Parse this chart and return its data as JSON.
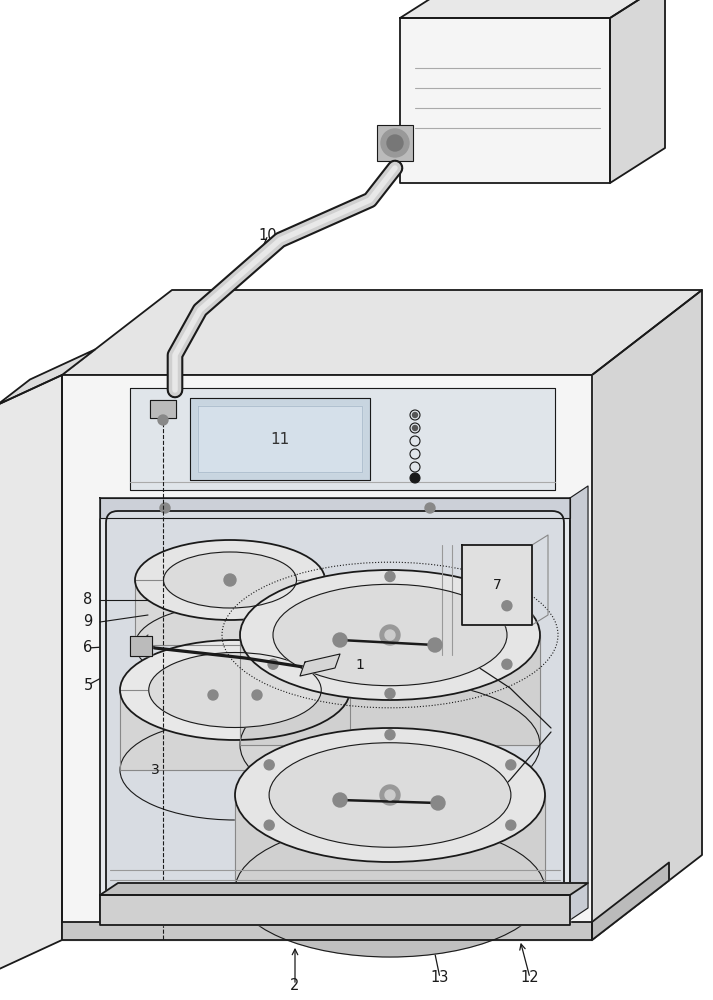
{
  "bg_color": "#ffffff",
  "lc": "#1a1a1a",
  "figsize": [
    7.13,
    10.0
  ],
  "dpi": 100,
  "fill_front": "#f8f8f8",
  "fill_side": "#e0e0e0",
  "fill_top": "#eeeeee",
  "fill_inner": "#f0f0f0",
  "fill_inner_bg": "#e8e8e8",
  "fill_drum": "#e8e8e8",
  "fill_drum_rim": "#d0d0d0"
}
